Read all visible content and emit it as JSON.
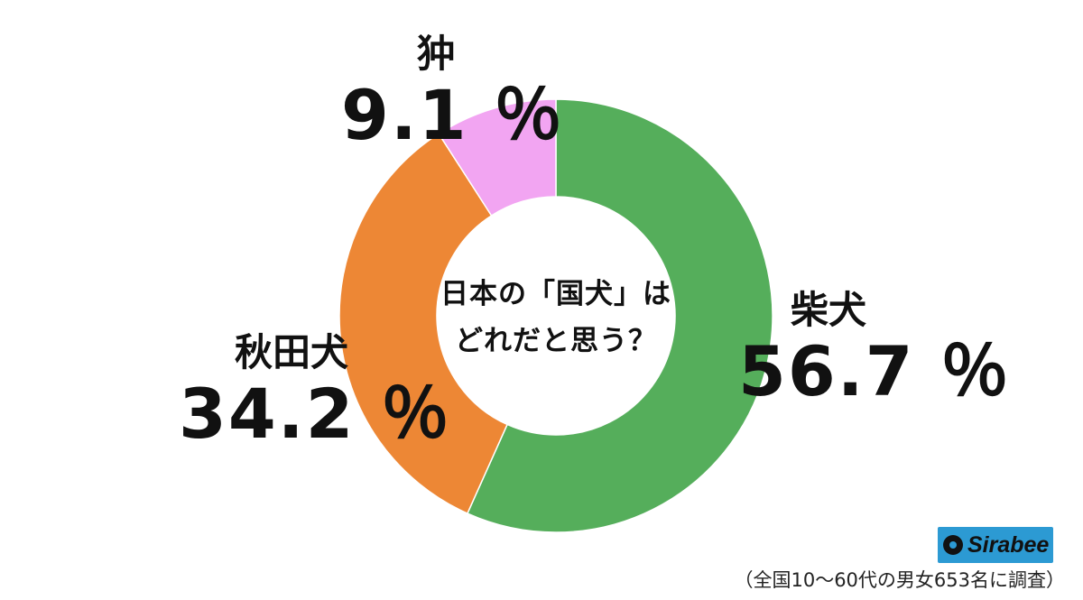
{
  "chart_data": {
    "type": "pie",
    "variant": "donut",
    "center_title": [
      "日本の「国犬」は",
      "どれだと思う？"
    ],
    "slices": [
      {
        "label": "柴犬",
        "value": 56.7,
        "value_text": "56.7 ％",
        "color": "#55ae5b"
      },
      {
        "label": "秋田犬",
        "value": 34.2,
        "value_text": "34.2 ％",
        "color": "#ed8735"
      },
      {
        "label": "狆",
        "value": 9.1,
        "value_text": "9.1 ％",
        "color": "#f2a5f2"
      }
    ],
    "start_angle": "12 o'clock",
    "direction": "clockwise"
  },
  "branding": {
    "logo_text": "Sirabee",
    "logo_color": "#2c9ad3"
  },
  "footnote": "（全国10〜60代の男女653名に調査）"
}
